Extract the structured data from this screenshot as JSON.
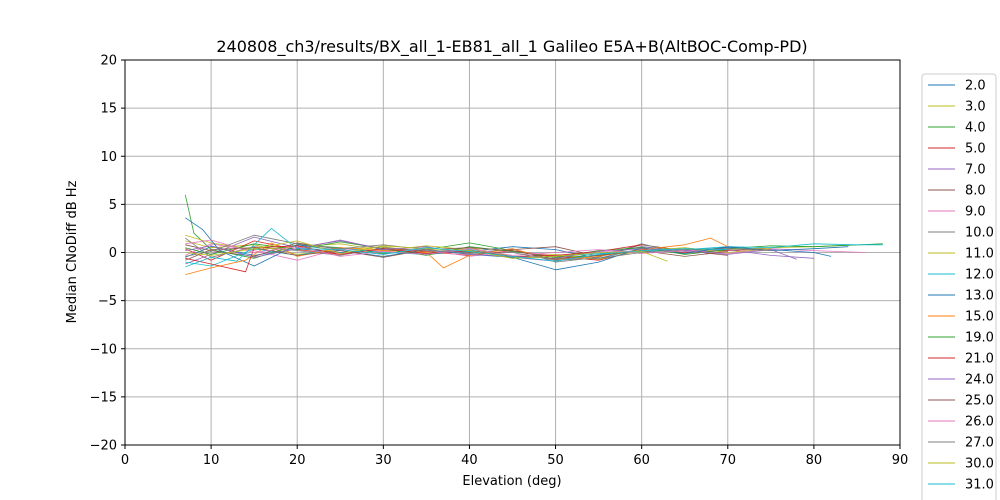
{
  "chart_data": {
    "type": "line",
    "title": "240808_ch3/results/BX_all_1-EB81_all_1 Galileo E5A+B(AltBOC-Comp-PD)",
    "xlabel": "Elevation (deg)",
    "ylabel": "Median CNoDiff dB Hz",
    "xlim": [
      0,
      90
    ],
    "ylim": [
      -20,
      20
    ],
    "xticks": [
      0,
      10,
      20,
      30,
      40,
      50,
      60,
      70,
      80,
      90
    ],
    "yticks": [
      -20,
      -15,
      -10,
      -5,
      0,
      5,
      10,
      15,
      20
    ],
    "grid": true,
    "legend_position": "right, outside",
    "series": [
      {
        "name": "2.0",
        "color": "#1f77b4",
        "x": [
          7,
          10,
          15,
          20,
          25,
          30,
          35,
          40,
          45,
          50,
          55,
          60,
          65,
          70,
          75,
          80,
          82
        ],
        "y": [
          -0.5,
          0.6,
          -0.3,
          0.4,
          0.0,
          0.3,
          -0.2,
          0.1,
          0.6,
          0.3,
          -0.6,
          0.4,
          0.2,
          0.5,
          0.3,
          0.0,
          -0.4
        ]
      },
      {
        "name": "3.0",
        "color": "#bcbd22",
        "x": [
          7,
          10,
          15,
          20,
          25,
          30,
          35,
          40,
          45,
          50,
          55,
          60,
          65,
          70,
          75,
          80,
          85
        ],
        "y": [
          1.2,
          0.5,
          0.8,
          -0.2,
          0.3,
          0.6,
          0.0,
          0.5,
          -0.4,
          -0.6,
          -0.3,
          0.1,
          0.4,
          0.3,
          0.5,
          0.6,
          0.8
        ]
      },
      {
        "name": "4.0",
        "color": "#2ca02c",
        "x": [
          7,
          8,
          10,
          15,
          20,
          25,
          30,
          35,
          40,
          45,
          50,
          55,
          60,
          65,
          70,
          75,
          80,
          88
        ],
        "y": [
          6.0,
          2.0,
          0.3,
          -0.6,
          0.8,
          0.5,
          -0.1,
          0.3,
          1.0,
          0.2,
          -0.5,
          -0.3,
          0.6,
          0.2,
          0.4,
          0.7,
          0.6,
          0.9
        ]
      },
      {
        "name": "5.0",
        "color": "#d62728",
        "x": [
          7,
          10,
          15,
          20,
          25,
          30,
          35,
          40,
          45,
          50,
          55,
          60,
          65,
          70,
          75
        ],
        "y": [
          0.4,
          -0.8,
          1.2,
          0.3,
          -0.2,
          0.4,
          0.1,
          -0.3,
          0.2,
          -0.4,
          -0.8,
          0.3,
          0.0,
          0.2,
          0.4
        ]
      },
      {
        "name": "7.0",
        "color": "#9467bd",
        "x": [
          7,
          10,
          15,
          20,
          25,
          30,
          35,
          40,
          45,
          50,
          55,
          60,
          65,
          70,
          75,
          80
        ],
        "y": [
          -1.2,
          -0.2,
          1.6,
          0.5,
          1.2,
          0.4,
          -0.1,
          0.2,
          -0.5,
          -0.9,
          -0.2,
          0.6,
          0.1,
          0.3,
          -0.3,
          -0.6
        ]
      },
      {
        "name": "8.0",
        "color": "#8c564b",
        "x": [
          7,
          10,
          15,
          20,
          25,
          30,
          35,
          40,
          45,
          50,
          55,
          60,
          65,
          70
        ],
        "y": [
          0.8,
          0.2,
          -0.4,
          1.0,
          0.3,
          -0.2,
          0.5,
          0.0,
          0.3,
          0.6,
          -0.4,
          0.8,
          0.2,
          -0.3
        ]
      },
      {
        "name": "9.0",
        "color": "#e377c2",
        "x": [
          7,
          10,
          15,
          20,
          25,
          30,
          35,
          40,
          45,
          50,
          55,
          60,
          65,
          70,
          75,
          80,
          86
        ],
        "y": [
          -0.3,
          0.9,
          0.2,
          -0.8,
          0.4,
          0.1,
          0.3,
          -0.4,
          0.1,
          -0.3,
          0.0,
          0.2,
          0.3,
          -0.1,
          0.4,
          0.2,
          0.0
        ]
      },
      {
        "name": "10.0",
        "color": "#7f7f7f",
        "x": [
          7,
          10,
          15,
          20,
          25,
          30,
          35,
          40,
          45,
          50,
          55,
          60,
          65,
          70
        ],
        "y": [
          1.5,
          -0.5,
          0.6,
          0.2,
          -0.3,
          0.5,
          0.2,
          -0.1,
          0.4,
          -1.0,
          -0.5,
          0.9,
          -0.2,
          0.3
        ]
      },
      {
        "name": "11.0",
        "color": "#bcbd22",
        "x": [
          7,
          10,
          15,
          20,
          25,
          30,
          35,
          40,
          45,
          50,
          55,
          60,
          65,
          70,
          75
        ],
        "y": [
          1.8,
          1.0,
          0.3,
          0.6,
          0.9,
          0.2,
          0.7,
          0.3,
          -0.5,
          -0.2,
          -0.7,
          0.2,
          0.5,
          0.0,
          0.4
        ]
      },
      {
        "name": "12.0",
        "color": "#17becf",
        "x": [
          7,
          10,
          15,
          20,
          25,
          30,
          35,
          40,
          45,
          50,
          55,
          60,
          65,
          70,
          75,
          80,
          85,
          88
        ],
        "y": [
          -1.0,
          -1.4,
          0.4,
          -0.3,
          0.5,
          0.0,
          -0.2,
          0.3,
          -0.6,
          -0.4,
          -0.1,
          0.1,
          0.3,
          0.6,
          0.5,
          0.9,
          0.8,
          0.8
        ]
      },
      {
        "name": "13.0",
        "color": "#1f77b4",
        "x": [
          7,
          9,
          11,
          15,
          20,
          25,
          30,
          35,
          40,
          45,
          50,
          55,
          60,
          65,
          70,
          75,
          80,
          84
        ],
        "y": [
          3.6,
          2.4,
          0.2,
          -1.4,
          0.8,
          0.2,
          -0.4,
          0.3,
          -0.2,
          -0.5,
          -1.8,
          -1.0,
          0.5,
          -0.1,
          0.6,
          0.2,
          0.4,
          0.6
        ]
      },
      {
        "name": "15.0",
        "color": "#ff7f0e",
        "x": [
          7,
          10,
          14,
          17,
          20,
          25,
          30,
          35,
          37,
          40,
          45,
          50,
          55,
          60,
          65,
          68,
          70
        ],
        "y": [
          -2.3,
          -1.6,
          -0.8,
          1.0,
          -0.4,
          0.5,
          0.2,
          0.0,
          -1.6,
          -0.3,
          0.4,
          -0.8,
          -0.4,
          0.3,
          0.8,
          1.5,
          0.6
        ]
      },
      {
        "name": "19.0",
        "color": "#2ca02c",
        "x": [
          7,
          10,
          15,
          20,
          25,
          30,
          35,
          40,
          45,
          50,
          55,
          60,
          65,
          70
        ],
        "y": [
          0.5,
          -0.2,
          0.9,
          0.3,
          1.1,
          0.4,
          -0.3,
          0.6,
          0.1,
          -0.5,
          0.2,
          0.5,
          -0.2,
          0.3
        ]
      },
      {
        "name": "21.0",
        "color": "#d62728",
        "x": [
          7,
          10,
          14,
          15,
          20,
          25,
          30,
          35,
          40,
          45,
          50,
          55,
          60
        ],
        "y": [
          -0.6,
          -1.2,
          -2.0,
          0.5,
          0.7,
          -0.2,
          0.4,
          -0.1,
          0.2,
          -0.4,
          -0.3,
          0.1,
          0.8
        ]
      },
      {
        "name": "24.0",
        "color": "#9467bd",
        "x": [
          7,
          10,
          15,
          20,
          25,
          30,
          35,
          40,
          45,
          50,
          55,
          60,
          65,
          70,
          75,
          78
        ],
        "y": [
          0.2,
          0.7,
          -0.5,
          0.4,
          1.3,
          0.3,
          0.6,
          -0.2,
          -0.4,
          -0.6,
          0.1,
          0.4,
          0.2,
          -0.2,
          0.3,
          -0.7
        ]
      },
      {
        "name": "25.0",
        "color": "#8c564b",
        "x": [
          7,
          10,
          15,
          20,
          25,
          30,
          35,
          40,
          45,
          50,
          55,
          60,
          65,
          70
        ],
        "y": [
          -0.8,
          0.3,
          0.5,
          -0.3,
          0.2,
          -0.5,
          0.3,
          0.5,
          0.2,
          -0.7,
          -0.3,
          0.2,
          -0.4,
          0.1
        ]
      },
      {
        "name": "26.0",
        "color": "#e377c2",
        "x": [
          7,
          10,
          15,
          20,
          25,
          30,
          35,
          40,
          45,
          50,
          55,
          60,
          65
        ],
        "y": [
          0.9,
          1.3,
          0.0,
          0.6,
          -0.4,
          0.1,
          -0.2,
          0.4,
          -0.3,
          0.0,
          0.3,
          -0.1,
          0.2
        ]
      },
      {
        "name": "27.0",
        "color": "#7f7f7f",
        "x": [
          7,
          10,
          15,
          20,
          25,
          30,
          35,
          40,
          45,
          50,
          55,
          60,
          65,
          70,
          75
        ],
        "y": [
          -0.4,
          0.1,
          1.8,
          0.9,
          0.4,
          0.8,
          0.3,
          -0.1,
          0.0,
          -0.8,
          -0.6,
          0.0,
          0.3,
          0.4,
          0.2
        ]
      },
      {
        "name": "30.0",
        "color": "#bcbd22",
        "x": [
          7,
          10,
          15,
          20,
          25,
          30,
          35,
          40,
          45,
          50,
          55,
          60,
          63
        ],
        "y": [
          0.0,
          -0.3,
          0.4,
          1.2,
          -0.1,
          0.7,
          0.4,
          0.2,
          -0.6,
          -0.4,
          0.0,
          0.1,
          -0.9
        ]
      },
      {
        "name": "31.0",
        "color": "#17becf",
        "x": [
          7,
          10,
          13,
          17,
          20,
          25,
          30,
          35,
          40,
          45,
          50,
          55,
          60,
          65,
          70
        ],
        "y": [
          -1.5,
          -0.5,
          -0.9,
          2.5,
          0.4,
          0.3,
          -0.2,
          0.5,
          0.1,
          -0.4,
          -0.9,
          -0.2,
          0.2,
          0.4,
          0.3
        ]
      }
    ]
  }
}
